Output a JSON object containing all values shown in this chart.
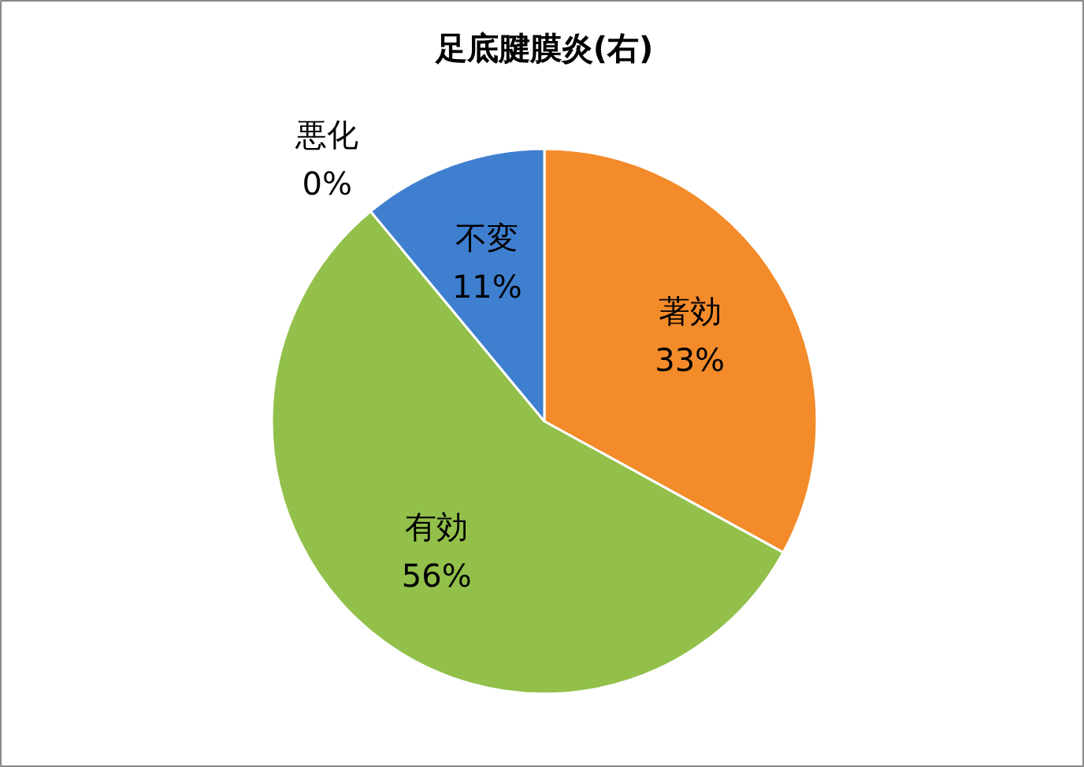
{
  "chart_data": {
    "type": "pie",
    "title": "足底腱膜炎(右)",
    "categories": [
      "著効",
      "有効",
      "悪化",
      "不変"
    ],
    "values": [
      33,
      56,
      0,
      11
    ],
    "value_labels": [
      "33%",
      "56%",
      "0%",
      "11%"
    ],
    "colors": [
      "#f38b2a",
      "#92c04a",
      "#c0504d",
      "#3f7fd0"
    ]
  }
}
